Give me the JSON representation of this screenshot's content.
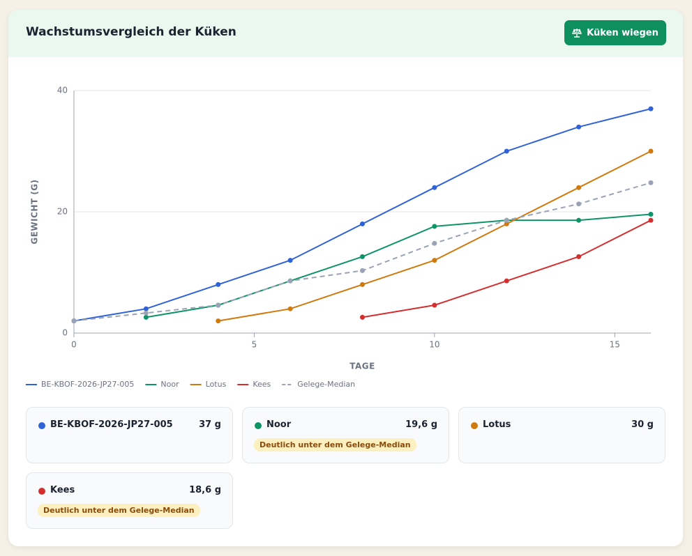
{
  "header": {
    "title": "Wachstumsvergleich der Küken",
    "button": "Küken wiegen"
  },
  "chart_data": {
    "type": "line",
    "x_label": "TAGE",
    "y_label": "GEWICHT (G)",
    "xlim": [
      0,
      16
    ],
    "xticks": [
      0,
      5,
      10,
      15
    ],
    "ylim": [
      0,
      40
    ],
    "yticks": [
      0,
      20,
      40
    ],
    "grid": true,
    "series": [
      {
        "name": "BE-KBOF-2026-JP27-005",
        "color": "#2f62d8",
        "x": [
          0,
          2,
          4,
          6,
          8,
          10,
          12,
          14,
          16
        ],
        "values": [
          2,
          4,
          8,
          12,
          18,
          24,
          30,
          34,
          37
        ]
      },
      {
        "name": "Noor",
        "color": "#0d9466",
        "x": [
          2,
          4,
          6,
          8,
          10,
          12,
          14,
          16
        ],
        "values": [
          2.6,
          4.6,
          8.6,
          12.6,
          17.6,
          18.6,
          18.6,
          19.6
        ]
      },
      {
        "name": "Lotus",
        "color": "#d07a0e",
        "x": [
          4,
          6,
          8,
          10,
          12,
          14,
          16
        ],
        "values": [
          2,
          4,
          8,
          12,
          18,
          24,
          30
        ]
      },
      {
        "name": "Kees",
        "color": "#d32f2f",
        "x": [
          8,
          10,
          12,
          14,
          16
        ],
        "values": [
          2.6,
          4.6,
          8.6,
          12.6,
          18.6
        ]
      },
      {
        "name": "Gelege-Median",
        "color": "#9aa3b5",
        "dashed": true,
        "x": [
          0,
          2,
          4,
          6,
          8,
          10,
          12,
          14,
          16
        ],
        "values": [
          2,
          3.3,
          4.6,
          8.6,
          10.3,
          14.8,
          18.6,
          21.3,
          24.8
        ]
      }
    ]
  },
  "cards": [
    {
      "name": "BE-KBOF-2026-JP27-005",
      "weight": "37 g"
    },
    {
      "name": "Noor",
      "weight": "19,6 g",
      "badge": "Deutlich unter dem Gelege-Median"
    },
    {
      "name": "Lotus",
      "weight": "30 g"
    },
    {
      "name": "Kees",
      "weight": "18,6 g",
      "badge": "Deutlich unter dem Gelege-Median"
    }
  ]
}
